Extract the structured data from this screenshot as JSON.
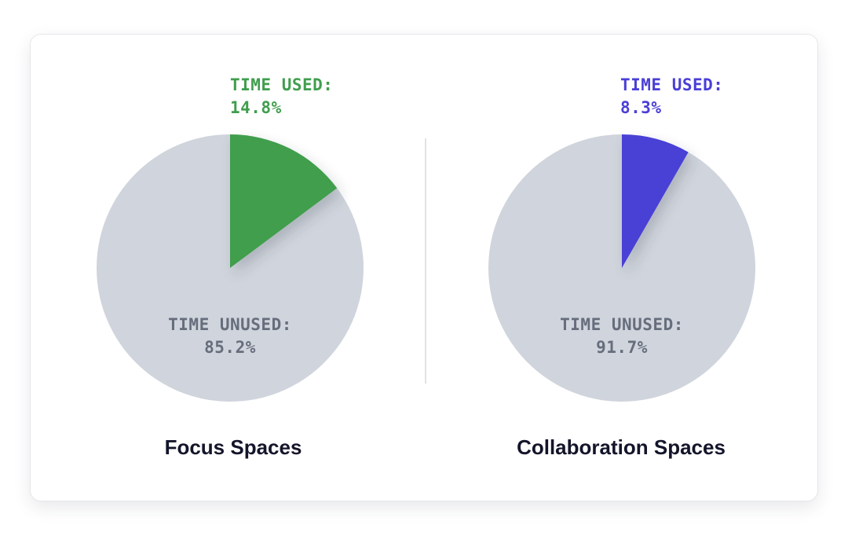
{
  "chart_data": [
    {
      "type": "pie",
      "title": "Focus Spaces",
      "slices": [
        {
          "label": "TIME USED:",
          "value": 14.8,
          "display": "14.8%",
          "color": "#3f9e4d"
        },
        {
          "label": "TIME UNUSED:",
          "value": 85.2,
          "display": "85.2%",
          "color": "#d0d4dc"
        }
      ]
    },
    {
      "type": "pie",
      "title": "Collaboration Spaces",
      "slices": [
        {
          "label": "TIME USED:",
          "value": 8.3,
          "display": "8.3%",
          "color": "#4a3fd6"
        },
        {
          "label": "TIME UNUSED:",
          "value": 91.7,
          "display": "91.7%",
          "color": "#d0d4dc"
        }
      ]
    }
  ]
}
